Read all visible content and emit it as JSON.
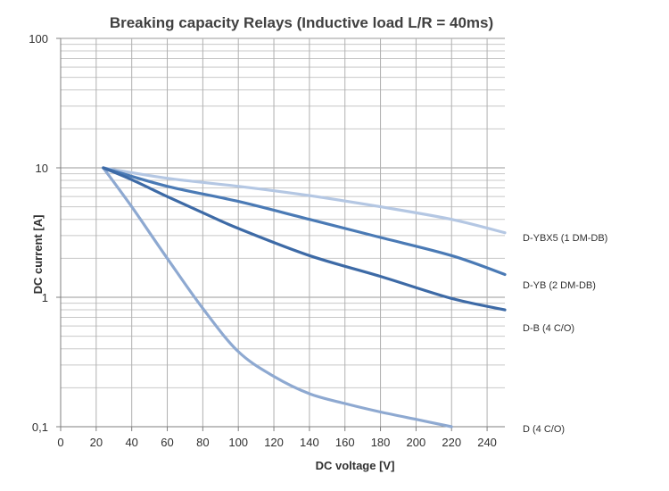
{
  "chart_data": {
    "type": "line",
    "title": "Breaking capacity Relays (Inductive load L/R = 40ms)",
    "xlabel": "DC voltage [V]",
    "ylabel": "DC current [A]",
    "xlim": [
      0,
      250
    ],
    "ylim": [
      0.1,
      100
    ],
    "yscale": "log",
    "grid": true,
    "x_ticks": [
      0,
      20,
      40,
      60,
      80,
      100,
      120,
      140,
      160,
      180,
      200,
      220,
      240
    ],
    "x_tick_labels": [
      "0",
      "20",
      "40",
      "60",
      "80",
      "100",
      "120",
      "140",
      "160",
      "180",
      "200",
      "220",
      "240"
    ],
    "y_ticks": [
      0.1,
      1,
      10,
      100
    ],
    "y_tick_labels": [
      "0,1",
      "1",
      "10",
      "100"
    ],
    "legend_position": "right",
    "series": [
      {
        "name": "D-YBX5 (1 DM-DB)",
        "color": "#b4c7e3",
        "points": [
          [
            24,
            10
          ],
          [
            60,
            8.3
          ],
          [
            100,
            7.2
          ],
          [
            140,
            6.1
          ],
          [
            180,
            5.0
          ],
          [
            220,
            4.0
          ],
          [
            250,
            3.15
          ]
        ]
      },
      {
        "name": "D-YB (2 DM-DB)",
        "color": "#4a7ab5",
        "points": [
          [
            24,
            10
          ],
          [
            60,
            7.2
          ],
          [
            100,
            5.5
          ],
          [
            140,
            4.0
          ],
          [
            180,
            2.9
          ],
          [
            220,
            2.1
          ],
          [
            250,
            1.5
          ]
        ]
      },
      {
        "name": "D-B (4 C/O)",
        "color": "#3d6aa6",
        "points": [
          [
            24,
            10
          ],
          [
            40,
            8.1
          ],
          [
            60,
            6.0
          ],
          [
            80,
            4.5
          ],
          [
            100,
            3.4
          ],
          [
            140,
            2.1
          ],
          [
            180,
            1.45
          ],
          [
            220,
            0.98
          ],
          [
            250,
            0.8
          ]
        ]
      },
      {
        "name": "D (4 C/O)",
        "color": "#8ea9d1",
        "points": [
          [
            24,
            10
          ],
          [
            40,
            5.0
          ],
          [
            60,
            2.0
          ],
          [
            80,
            0.82
          ],
          [
            100,
            0.38
          ],
          [
            120,
            0.245
          ],
          [
            140,
            0.18
          ],
          [
            160,
            0.151
          ],
          [
            180,
            0.13
          ],
          [
            200,
            0.114
          ],
          [
            220,
            0.1
          ]
        ]
      }
    ]
  }
}
